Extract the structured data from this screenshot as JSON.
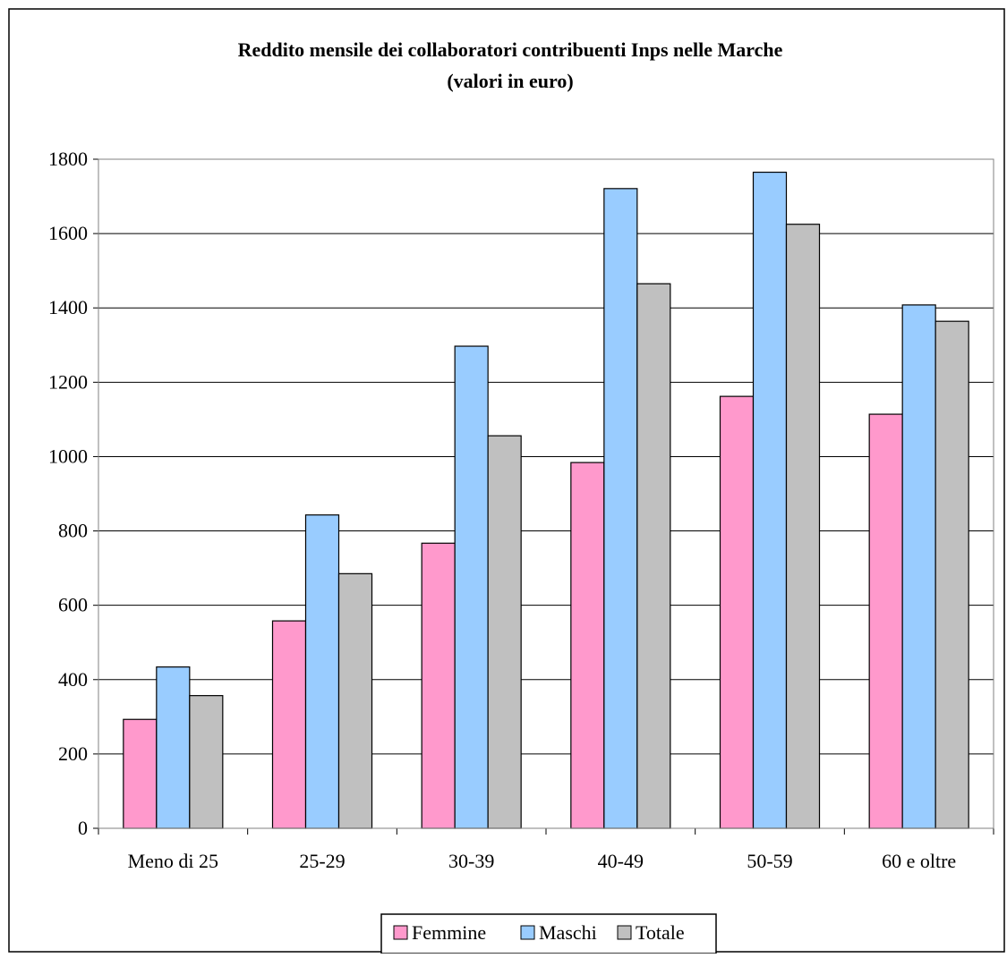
{
  "chart_data": {
    "type": "bar",
    "title": "Reddito mensile dei collaboratori contribuenti Inps nelle Marche",
    "subtitle": "(valori in euro)",
    "xlabel": "",
    "ylabel": "",
    "categories": [
      "Meno di 25",
      "25-29",
      "30-39",
      "40-49",
      "50-59",
      "60 e oltre"
    ],
    "series": [
      {
        "name": "Femmine",
        "color": "#FF99CC",
        "values": [
          293,
          558,
          767,
          984,
          1162,
          1114
        ]
      },
      {
        "name": "Maschi",
        "color": "#99CCFF",
        "values": [
          434,
          843,
          1297,
          1721,
          1765,
          1408
        ]
      },
      {
        "name": "Totale",
        "color": "#C0C0C0",
        "values": [
          357,
          685,
          1056,
          1465,
          1625,
          1364
        ]
      }
    ],
    "ylim": [
      0,
      1800
    ],
    "yticks": [
      0,
      200,
      400,
      600,
      800,
      1000,
      1200,
      1400,
      1600,
      1800
    ],
    "grid": true,
    "legend_position": "bottom-center"
  }
}
